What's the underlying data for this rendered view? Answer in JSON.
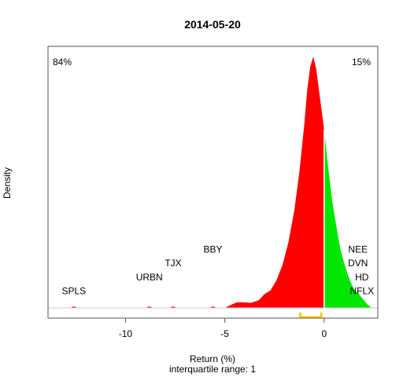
{
  "chart_data": {
    "type": "area",
    "title": "2014-05-20",
    "xlabel": "Return (%)",
    "subtitle": "interquartile range: 1",
    "ylabel": "Density",
    "xlim": [
      -13.9,
      2.7
    ],
    "ylim": [
      0,
      1.0
    ],
    "xticks": [
      "-10",
      "-5",
      "0"
    ],
    "xtick_values": [
      -10,
      -5,
      0
    ],
    "split_at": 0,
    "series": [
      {
        "color": "#ff0000",
        "points": [
          [
            -12.8,
            0.0
          ],
          [
            -12.6,
            0.006
          ],
          [
            -12.4,
            0.0
          ],
          [
            -9.0,
            0.0
          ],
          [
            -8.8,
            0.006
          ],
          [
            -8.6,
            0.0
          ],
          [
            -7.8,
            0.0
          ],
          [
            -7.6,
            0.006
          ],
          [
            -7.4,
            0.0
          ],
          [
            -5.8,
            0.0
          ],
          [
            -5.6,
            0.006
          ],
          [
            -5.4,
            0.0
          ],
          [
            -5.0,
            0.0
          ],
          [
            -4.7,
            0.012
          ],
          [
            -4.4,
            0.022
          ],
          [
            -4.0,
            0.022
          ],
          [
            -3.7,
            0.02
          ],
          [
            -3.3,
            0.03
          ],
          [
            -3.0,
            0.055
          ],
          [
            -2.7,
            0.07
          ],
          [
            -2.4,
            0.11
          ],
          [
            -2.1,
            0.17
          ],
          [
            -1.8,
            0.26
          ],
          [
            -1.5,
            0.39
          ],
          [
            -1.25,
            0.54
          ],
          [
            -1.0,
            0.73
          ],
          [
            -0.85,
            0.87
          ],
          [
            -0.7,
            0.96
          ],
          [
            -0.55,
            1.0
          ],
          [
            -0.4,
            0.95
          ],
          [
            -0.25,
            0.86
          ],
          [
            -0.1,
            0.77
          ],
          [
            0.0,
            0.71
          ]
        ]
      },
      {
        "color": "#00e600",
        "points": [
          [
            0.0,
            0.71
          ],
          [
            0.2,
            0.56
          ],
          [
            0.4,
            0.43
          ],
          [
            0.6,
            0.33
          ],
          [
            0.8,
            0.24
          ],
          [
            1.0,
            0.18
          ],
          [
            1.2,
            0.13
          ],
          [
            1.4,
            0.09
          ],
          [
            1.6,
            0.065
          ],
          [
            1.8,
            0.05
          ],
          [
            2.0,
            0.03
          ],
          [
            2.2,
            0.012
          ],
          [
            2.4,
            0.0
          ]
        ]
      }
    ],
    "left_percent": "84%",
    "right_percent": "15%",
    "left_color": "#ff0000",
    "right_color": "#008800",
    "iqr_bracket": {
      "from": -1.2,
      "to": -0.15,
      "color": "#ffcc00"
    },
    "annotations": [
      {
        "text": "SPLS",
        "x": -12.6,
        "level": 0.055
      },
      {
        "text": "URBN",
        "x": -8.8,
        "level": 0.11
      },
      {
        "text": "TJX",
        "x": -7.6,
        "level": 0.165
      },
      {
        "text": "BBY",
        "x": -5.6,
        "level": 0.22
      },
      {
        "text": "NEE",
        "x": 1.7,
        "level": 0.22
      },
      {
        "text": "DVN",
        "x": 1.7,
        "level": 0.165
      },
      {
        "text": "HD",
        "x": 1.9,
        "level": 0.11
      },
      {
        "text": "NFLX",
        "x": 1.9,
        "level": 0.055
      }
    ]
  }
}
